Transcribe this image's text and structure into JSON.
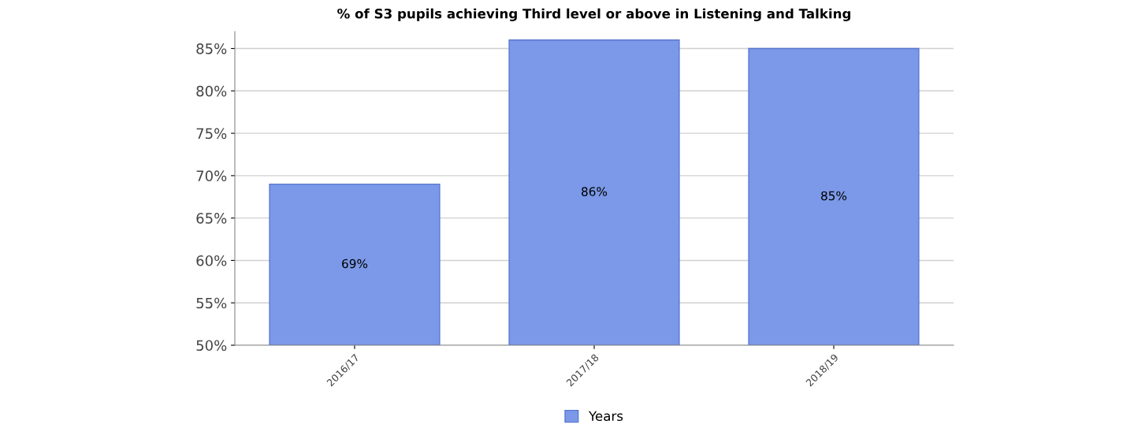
{
  "chart_data": {
    "type": "bar",
    "title": "% of S3 pupils achieving Third level or above in Listening and Talking",
    "categories": [
      "2016/17",
      "2017/18",
      "2018/19"
    ],
    "series": [
      {
        "name": "Years",
        "color": "#7b99e8",
        "values": [
          69,
          86,
          85
        ]
      }
    ],
    "value_labels": [
      "69%",
      "86%",
      "85%"
    ],
    "ylim": [
      50,
      87
    ],
    "yticks": [
      {
        "value": 50,
        "label": "50%"
      },
      {
        "value": 55,
        "label": "55%"
      },
      {
        "value": 60,
        "label": "60%"
      },
      {
        "value": 65,
        "label": "65%"
      },
      {
        "value": 70,
        "label": "70%"
      },
      {
        "value": 75,
        "label": "75%"
      },
      {
        "value": 80,
        "label": "80%"
      },
      {
        "value": 85,
        "label": "85%"
      }
    ],
    "grid": "y",
    "legend": "bottom"
  }
}
